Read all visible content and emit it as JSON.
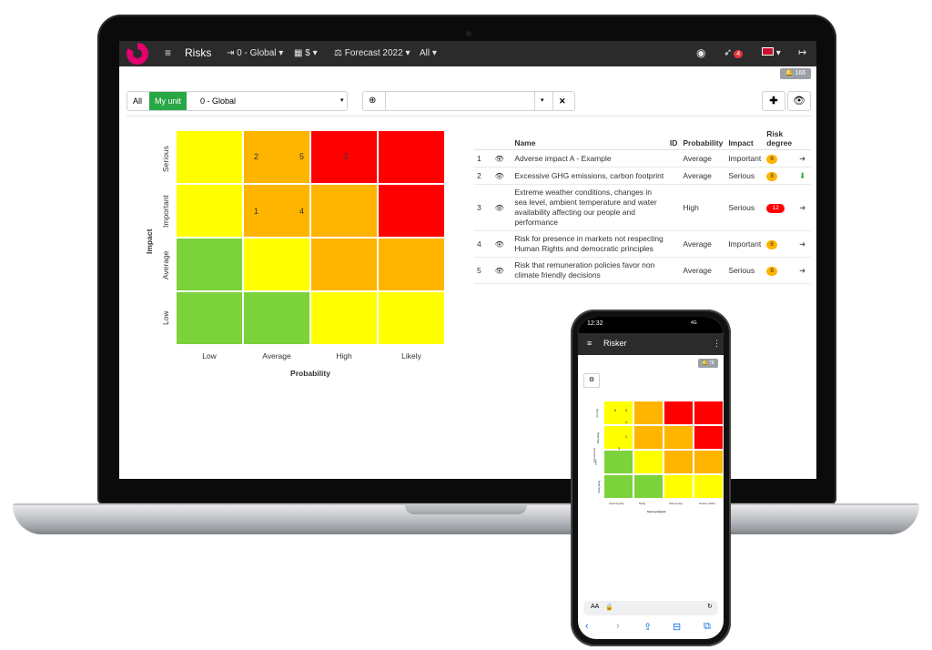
{
  "navbar": {
    "menu_icon": "hamburger-icon",
    "title": "Risks",
    "unit": "0 - Global",
    "currency": "$",
    "forecast": "Forecast 2022",
    "scope": "All",
    "rocket_badge": "4",
    "notifications": "166"
  },
  "filter": {
    "all_label": "All",
    "my_unit_label": "My unit",
    "unit_value": "0 - Global",
    "search_value": ""
  },
  "matrix": {
    "y_title": "Impact",
    "x_title": "Probability",
    "rows": [
      "Serious",
      "Important",
      "Average",
      "Low"
    ],
    "cols": [
      "Low",
      "Average",
      "High",
      "Likely"
    ],
    "colors": {
      "green": "#7cd23a",
      "yellow": "#ffff00",
      "orange": "#ffb400",
      "red": "#ff0000"
    },
    "grid": [
      [
        "yellow",
        "orange",
        "red",
        "red"
      ],
      [
        "yellow",
        "orange",
        "orange",
        "red"
      ],
      [
        "green",
        "yellow",
        "orange",
        "orange"
      ],
      [
        "green",
        "green",
        "yellow",
        "yellow"
      ]
    ],
    "markers": {
      "serious_average_a": "2",
      "serious_average_b": "5",
      "serious_high": "3",
      "important_average_a": "1",
      "important_average_b": "4"
    }
  },
  "table": {
    "headers": [
      "Name",
      "ID",
      "Probability",
      "Impact",
      "Risk degree"
    ],
    "rows": [
      {
        "n": "1",
        "name": "Adverse impact A - Example",
        "probability": "Average",
        "impact": "Important",
        "degree": "6",
        "degree_color": "#ffb400",
        "trend": "arrow-right-icon"
      },
      {
        "n": "2",
        "name": "Excessive GHG emissions, carbon footprint",
        "probability": "Average",
        "impact": "Serious",
        "degree": "8",
        "degree_color": "#ffb400",
        "trend": "arrow-down-icon"
      },
      {
        "n": "3",
        "name": "Extreme weather conditions, changes in sea level, ambient temperature and water availability affecting our people and performance",
        "probability": "High",
        "impact": "Serious",
        "degree": "12",
        "degree_color": "#ff0000",
        "trend": "arrow-right-icon"
      },
      {
        "n": "4",
        "name": "Risk for presence in markets not respecting Human Rights and democratic principles",
        "probability": "Average",
        "impact": "Important",
        "degree": "6",
        "degree_color": "#ffb400",
        "trend": "arrow-right-icon"
      },
      {
        "n": "5",
        "name": "Risk that remuneration policies favor non climate friendly decisions",
        "probability": "Average",
        "impact": "Serious",
        "degree": "8",
        "degree_color": "#ffb400",
        "trend": "arrow-right-icon"
      }
    ]
  },
  "phone": {
    "time": "12:32",
    "signal": "4G",
    "app_title": "Risker",
    "notifications": "78",
    "rows": [
      "Alvorlig",
      "Betydelig",
      "Liten",
      "Ubetydelig"
    ],
    "cols": [
      "Usannsynlig",
      "Mulig",
      "Sannsynlig",
      "Nesten sikker"
    ],
    "x_title": "Sannsynlighet",
    "y_title": "Konsekvens",
    "markers": [
      "6",
      "5",
      "4",
      "3",
      "2"
    ],
    "url_aa": "AA",
    "grid": [
      [
        "yellow",
        "orange",
        "red",
        "red"
      ],
      [
        "yellow",
        "orange",
        "orange",
        "red"
      ],
      [
        "green",
        "yellow",
        "orange",
        "orange"
      ],
      [
        "green",
        "green",
        "yellow",
        "yellow"
      ]
    ]
  }
}
